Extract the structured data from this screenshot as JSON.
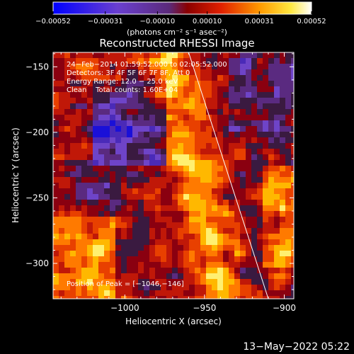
{
  "chart_data": {
    "type": "heatmap",
    "title": "Reconstructed RHESSI Image",
    "xlabel": "Heliocentric X (arcsec)",
    "ylabel": "Heliocentric Y (arcsec)",
    "xlim": [
      -1045,
      -894
    ],
    "ylim": [
      -327,
      -139
    ],
    "x_ticks": [
      -1000,
      -950,
      -900
    ],
    "x_tick_labels": [
      "−1000",
      "−950",
      "−900"
    ],
    "y_ticks": [
      -150,
      -200,
      -250,
      -300
    ],
    "y_tick_labels": [
      "−150",
      "−200",
      "−250",
      "−300"
    ],
    "colorbar": {
      "min": -0.00052,
      "max": 0.00052,
      "ticks": [
        -0.00052,
        -0.00031,
        -0.0001,
        0.0001,
        0.00031,
        0.00052
      ],
      "tick_labels": [
        "−0.00052",
        "−0.00031",
        "−0.00010",
        "0.00010",
        "0.00031",
        "0.00052"
      ],
      "units_label": "(photons cm⁻² s⁻¹ asec⁻²)",
      "colormap": "blue-purple-red-yellow-white"
    },
    "annotations": [
      "24−Feb−2014 01:59:52.000 to 02:05:52.000",
      "Detectors: 3F 4F 5F 6F 7F 8F, Att 0",
      "Energy Range: 12.0 − 25.0 keV",
      "Clean    Total counts: 1.60E+04",
      "Position of Peak = [−1046,−146]"
    ],
    "peak_position": [
      -1046,
      -146
    ],
    "limb_line": {
      "color": "#ffffff",
      "points": [
        [
          -960,
          -139
        ],
        [
          -910,
          -327
        ]
      ]
    },
    "grid": false
  },
  "footer_date": "13−May−2022 05:22",
  "colors": {
    "background": "#000000",
    "text": "#ffffff",
    "limb": "#ffffff"
  }
}
